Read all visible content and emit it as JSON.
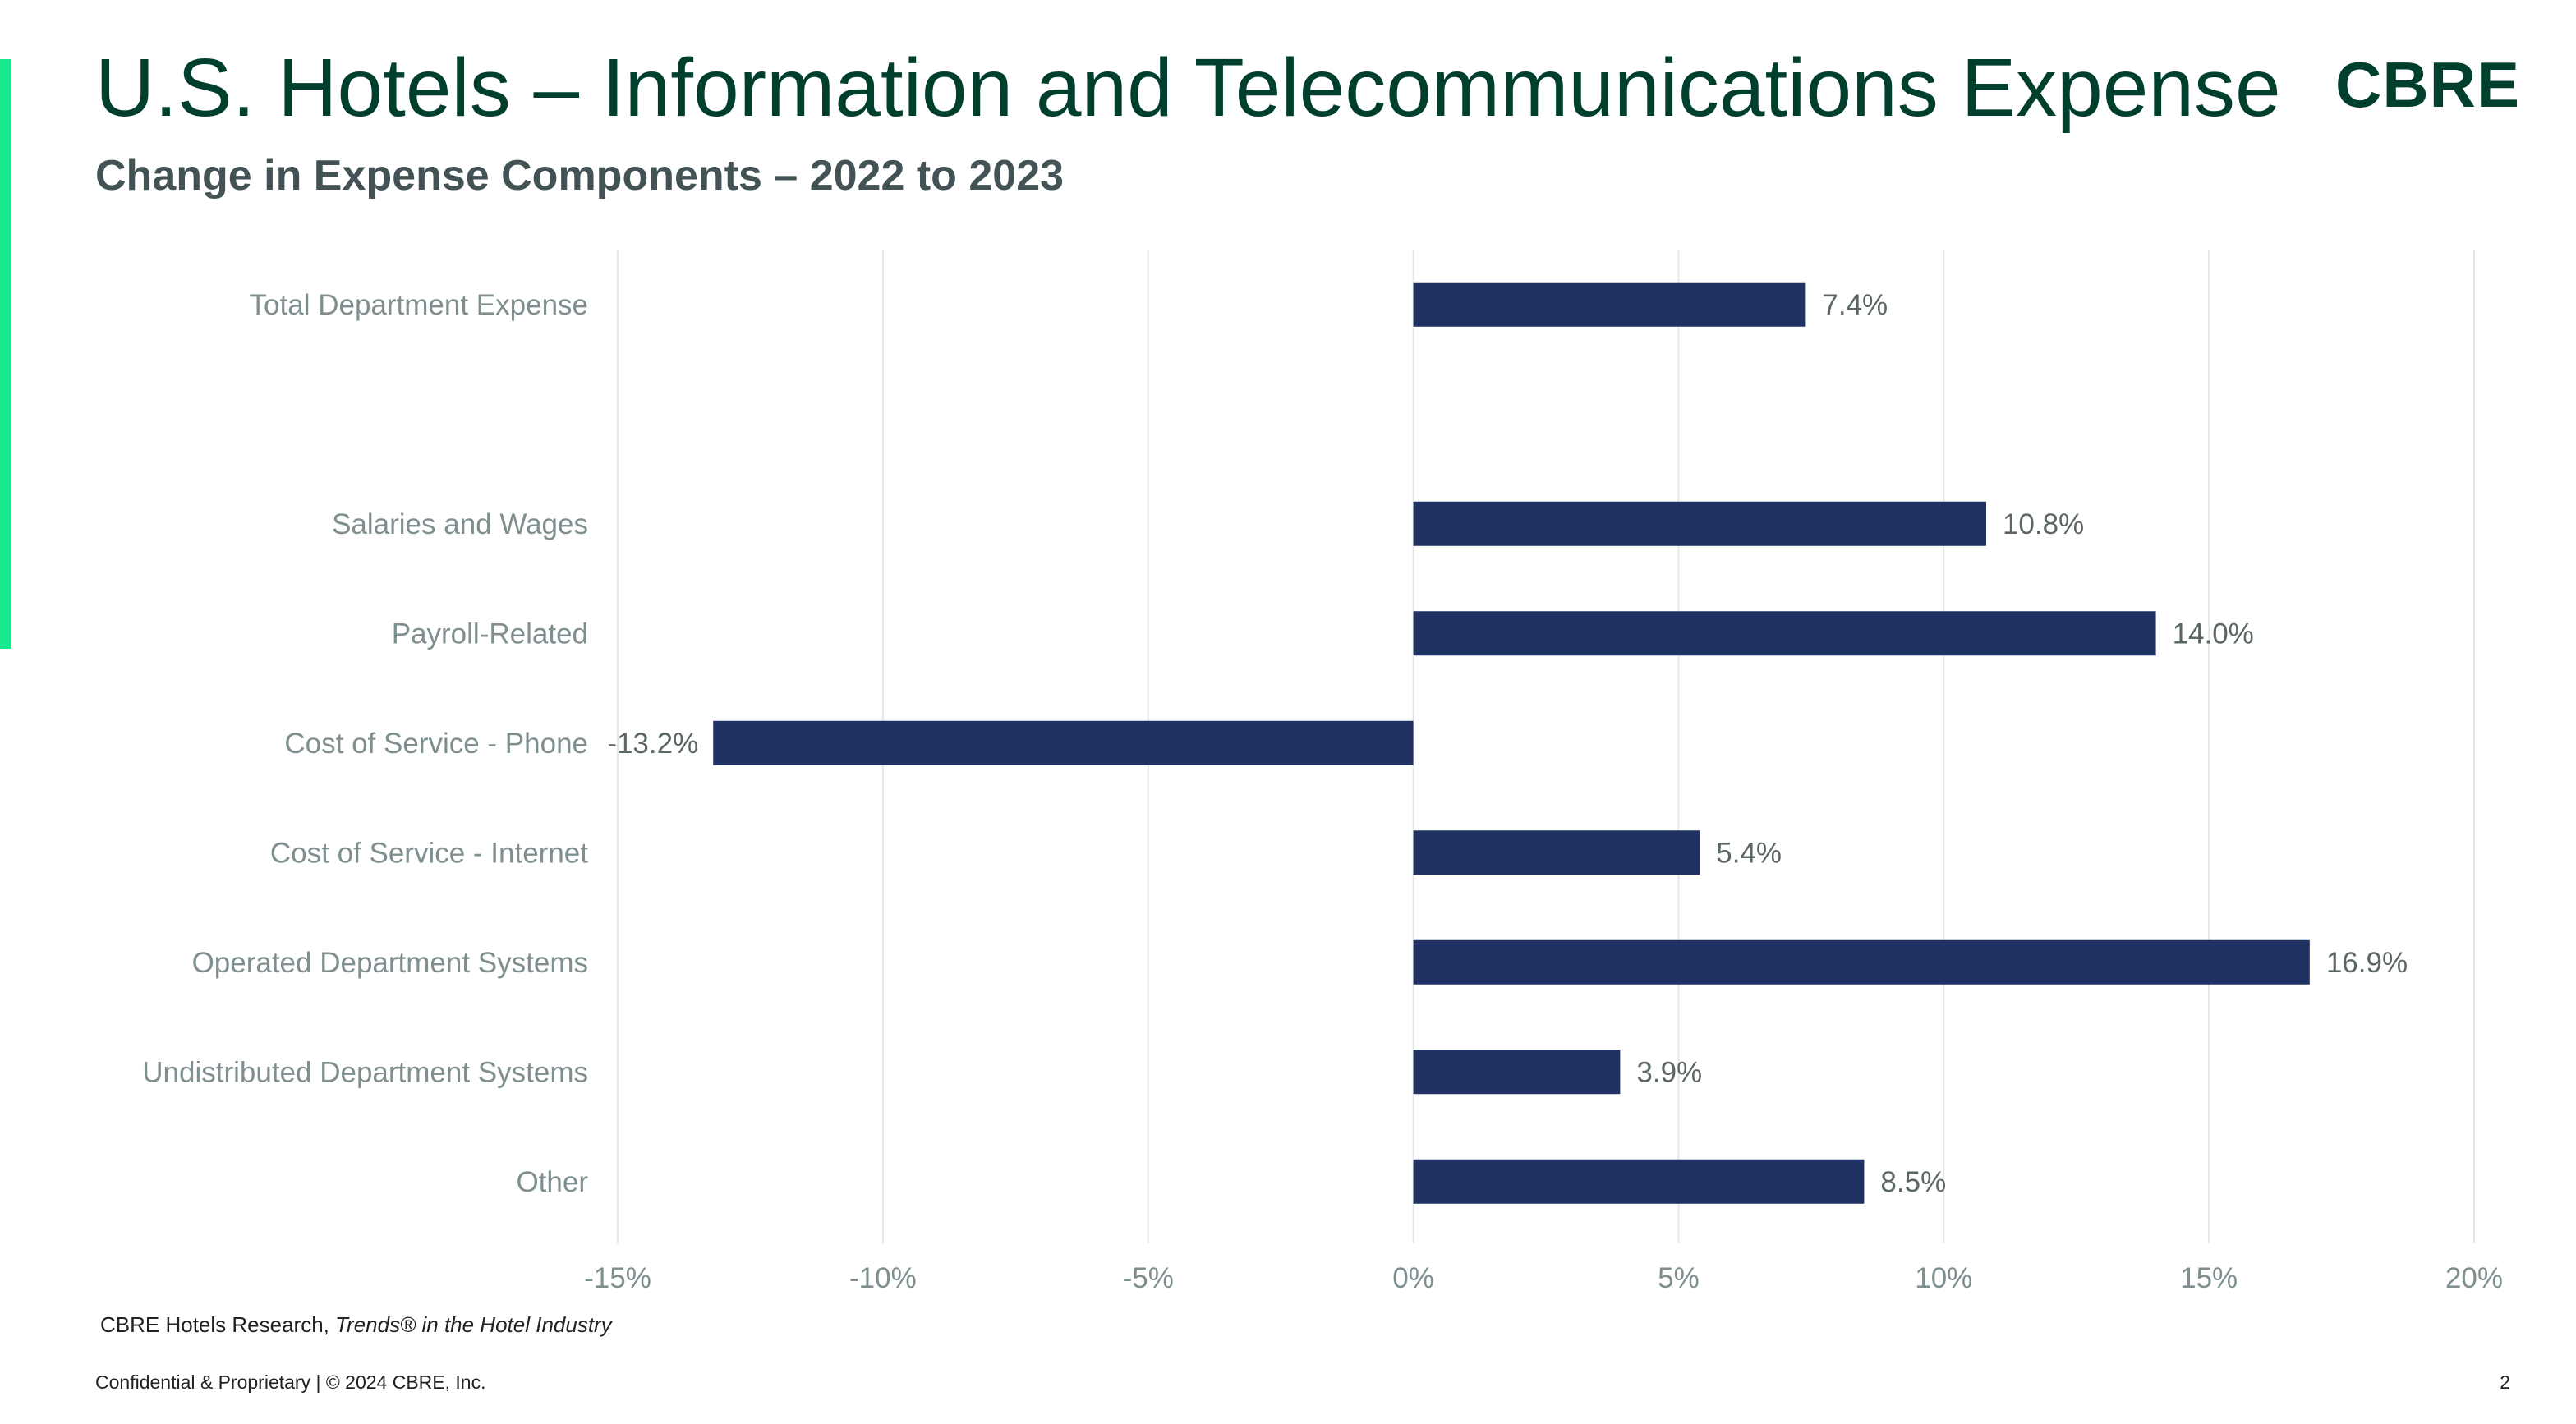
{
  "header": {
    "title": "U.S. Hotels – Information and Telecommunications Expense",
    "subtitle": "Change in Expense Components – 2022 to 2023",
    "logo": "CBRE"
  },
  "colors": {
    "accent": "#17e88f",
    "brand_dark": "#003f2d",
    "bar": "#1f3263",
    "category_label": "#7f8f8f",
    "gridline": "#e6e6e6"
  },
  "chart_data": {
    "type": "bar",
    "orientation": "horizontal",
    "title": "Change in Expense Components – 2022 to 2023",
    "categories": [
      "Total Department Expense",
      "",
      "Salaries and Wages",
      "Payroll-Related",
      "Cost of Service - Phone",
      "Cost of Service - Internet",
      "Operated Department Systems",
      "Undistributed Department Systems",
      "Other"
    ],
    "values": [
      7.4,
      null,
      10.8,
      14.0,
      -13.2,
      5.4,
      16.9,
      3.9,
      8.5
    ],
    "data_labels": [
      "7.4%",
      "",
      "10.8%",
      "14.0%",
      "-13.2%",
      "5.4%",
      "16.9%",
      "3.9%",
      "8.5%"
    ],
    "xlim": [
      -15,
      20
    ],
    "xticks": [
      -15,
      -10,
      -5,
      0,
      5,
      10,
      15,
      20
    ],
    "xtick_labels": [
      "-15%",
      "-10%",
      "-5%",
      "0%",
      "5%",
      "10%",
      "15%",
      "20%"
    ],
    "xlabel": "",
    "ylabel": "",
    "grid": true,
    "legend": "none"
  },
  "source": {
    "prefix": "CBRE Hotels Research, ",
    "italic": "Trends® in the Hotel Industry"
  },
  "footer": {
    "text": "Confidential & Proprietary | © 2024 CBRE, Inc.",
    "page": "2"
  }
}
